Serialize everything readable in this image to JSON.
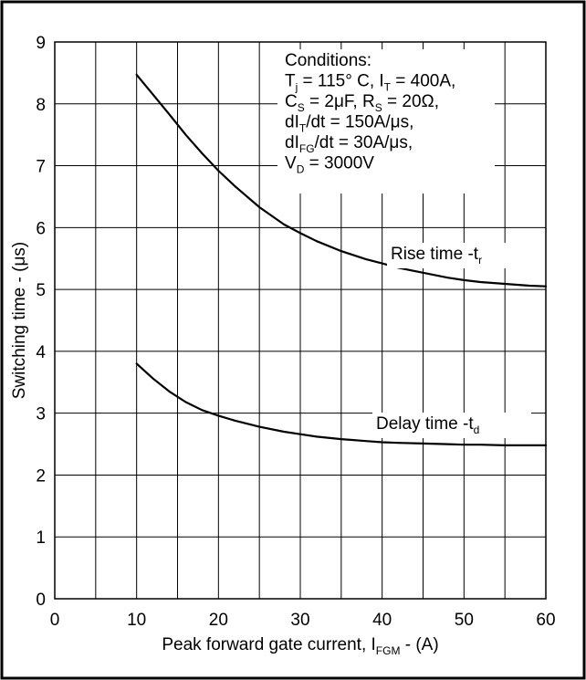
{
  "chart_data": {
    "type": "line",
    "title": "",
    "xlabel": {
      "main": "Peak forward gate current, I",
      "sub": "FGM",
      "suffix": " - (A)"
    },
    "ylabel": "Switching time - (μs)",
    "xlim": [
      0,
      60
    ],
    "ylim": [
      0,
      9
    ],
    "xticks": [
      "0",
      "10",
      "20",
      "30",
      "40",
      "50",
      "60"
    ],
    "yticks": [
      "0",
      "1",
      "2",
      "3",
      "4",
      "5",
      "6",
      "7",
      "8",
      "9"
    ],
    "grid": true,
    "series": [
      {
        "name": "Rise time -t",
        "name_sub": "r",
        "x": [
          10,
          12,
          14,
          16,
          18,
          20,
          22,
          25,
          28,
          30,
          32,
          35,
          38,
          40,
          42,
          45,
          48,
          50,
          52,
          55,
          58,
          60
        ],
        "y": [
          8.47,
          8.15,
          7.83,
          7.5,
          7.2,
          6.92,
          6.67,
          6.33,
          6.05,
          5.91,
          5.78,
          5.62,
          5.49,
          5.42,
          5.35,
          5.27,
          5.19,
          5.15,
          5.12,
          5.09,
          5.06,
          5.05
        ]
      },
      {
        "name": "Delay time -t",
        "name_sub": "d",
        "x": [
          10,
          12,
          14,
          16,
          18,
          20,
          22,
          25,
          28,
          30,
          32,
          35,
          38,
          40,
          42,
          45,
          48,
          50,
          52,
          55,
          58,
          60
        ],
        "y": [
          3.8,
          3.56,
          3.35,
          3.18,
          3.05,
          2.96,
          2.88,
          2.78,
          2.7,
          2.66,
          2.62,
          2.58,
          2.55,
          2.53,
          2.52,
          2.51,
          2.5,
          2.49,
          2.49,
          2.48,
          2.48,
          2.48
        ]
      }
    ],
    "conditions": [
      {
        "segments": [
          {
            "t": "Conditions:"
          }
        ]
      },
      {
        "segments": [
          {
            "t": "T"
          },
          {
            "t": "j",
            "sub": true
          },
          {
            "t": " = 115° C, I"
          },
          {
            "t": "T",
            "sub": true
          },
          {
            "t": " = 400A,"
          }
        ]
      },
      {
        "segments": [
          {
            "t": "C"
          },
          {
            "t": "S",
            "sub": true
          },
          {
            "t": " = 2μF, R"
          },
          {
            "t": "S",
            "sub": true
          },
          {
            "t": " = 20Ω,"
          }
        ]
      },
      {
        "segments": [
          {
            "t": "dI"
          },
          {
            "t": "T",
            "sub": true
          },
          {
            "t": "/dt = 150A/μs,"
          }
        ]
      },
      {
        "segments": [
          {
            "t": "dI"
          },
          {
            "t": "FG",
            "sub": true
          },
          {
            "t": "/dt = 30A/μs,"
          }
        ]
      },
      {
        "segments": [
          {
            "t": "V"
          },
          {
            "t": "D",
            "sub": true
          },
          {
            "t": " = 3000V"
          }
        ]
      }
    ]
  }
}
